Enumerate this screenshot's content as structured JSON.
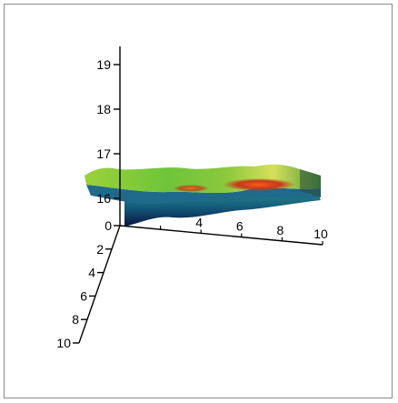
{
  "chart_data": {
    "type": "surface-3d",
    "title": "",
    "z_axis": {
      "ticks": [
        16,
        17,
        18,
        19
      ]
    },
    "x_axis": {
      "ticks": [
        4,
        6,
        8,
        10
      ],
      "range": [
        0,
        10
      ]
    },
    "y_axis": {
      "ticks": [
        0,
        2,
        4,
        6,
        8,
        10
      ],
      "range": [
        0,
        10
      ]
    },
    "grid": false,
    "legend": "none",
    "surface": {
      "x": [
        0,
        1,
        2,
        3,
        4,
        5,
        6,
        7,
        8,
        9,
        10
      ],
      "z_front": [
        16.4,
        16.3,
        16.35,
        16.3,
        16.35,
        16.25,
        16.35,
        16.55,
        16.4,
        16.2,
        16.3
      ],
      "z_back": [
        16.1,
        16.05,
        16.1,
        16.05,
        16.0,
        16.1,
        16.2,
        16.3,
        16.1,
        16.0,
        16.15
      ],
      "colormap": [
        "#0a1a5c",
        "#13557a",
        "#1f8a8a",
        "#b83a1a",
        "#e8742a",
        "#9ad24a",
        "#c8e85a"
      ]
    }
  }
}
